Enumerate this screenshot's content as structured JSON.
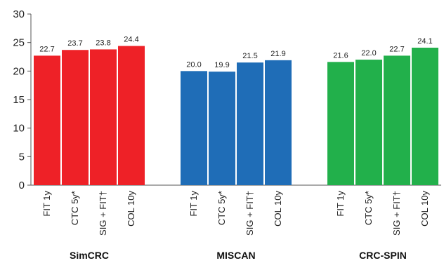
{
  "chart_data": {
    "type": "bar",
    "ylim": [
      0,
      30
    ],
    "yticks": [
      0,
      5,
      10,
      15,
      20,
      25,
      30
    ],
    "grid": false,
    "legend": "none",
    "groups": [
      {
        "name": "SimCRC",
        "color": "#ee2127",
        "bars": [
          {
            "category": "FIT 1y",
            "value": 22.7
          },
          {
            "category": "CTC 5y*",
            "value": 23.7
          },
          {
            "category": "SIG + FIT†",
            "value": 23.8
          },
          {
            "category": "COL 10y",
            "value": 24.4
          }
        ]
      },
      {
        "name": "MISCAN",
        "color": "#1f6db7",
        "bars": [
          {
            "category": "FIT 1y",
            "value": 20.0
          },
          {
            "category": "CTC 5y*",
            "value": 19.9
          },
          {
            "category": "SIG + FIT†",
            "value": 21.5
          },
          {
            "category": "COL 10y",
            "value": 21.9
          }
        ]
      },
      {
        "name": "CRC-SPIN",
        "color": "#22b04b",
        "bars": [
          {
            "category": "FIT 1y",
            "value": 21.6
          },
          {
            "category": "CTC 5y*",
            "value": 22.0
          },
          {
            "category": "SIG + FIT†",
            "value": 22.7
          },
          {
            "category": "COL 10y",
            "value": 24.1
          }
        ]
      }
    ]
  }
}
